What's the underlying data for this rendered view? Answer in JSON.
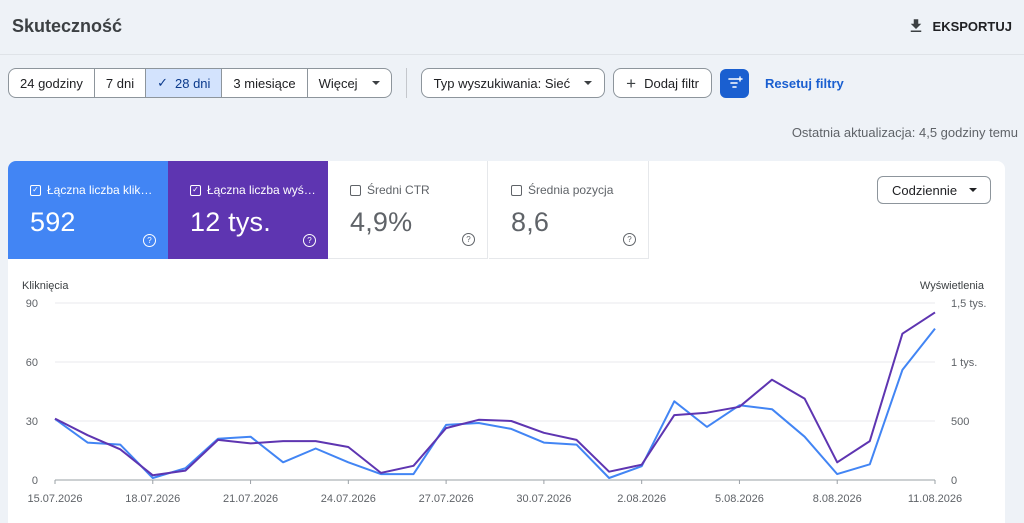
{
  "header": {
    "title": "Skuteczność",
    "export_label": "EKSPORTUJ"
  },
  "toolbar": {
    "ranges": [
      "24 godziny",
      "7 dni",
      "28 dni",
      "3 miesiące",
      "Więcej"
    ],
    "selected_range": "28 dni",
    "search_type_label": "Typ wyszukiwania: Sieć",
    "add_filter_label": "Dodaj filtr",
    "reset_label": "Resetuj filtry"
  },
  "last_update": "Ostatnia aktualizacja: 4,5 godziny temu",
  "metrics": [
    {
      "label": "Łączna liczba klik…",
      "value": "592",
      "checked": true,
      "color": "#4285f4"
    },
    {
      "label": "Łączna liczba wyś…",
      "value": "12 tys.",
      "checked": true,
      "color": "#5e35b1"
    },
    {
      "label": "Średni CTR",
      "value": "4,9%",
      "checked": false
    },
    {
      "label": "Średnia pozycja",
      "value": "8,6",
      "checked": false
    }
  ],
  "granularity": "Codziennie",
  "icons": {
    "export": "download-icon",
    "filter": "filter-list-icon",
    "help": "help-circle-icon"
  },
  "chart_data": {
    "type": "line",
    "x": [
      "15.07.2026",
      "16.07.2026",
      "17.07.2026",
      "18.07.2026",
      "19.07.2026",
      "20.07.2026",
      "21.07.2026",
      "22.07.2026",
      "23.07.2026",
      "24.07.2026",
      "25.07.2026",
      "26.07.2026",
      "27.07.2026",
      "28.07.2026",
      "29.07.2026",
      "30.07.2026",
      "31.07.2026",
      "01.08.2026",
      "02.08.2026",
      "03.08.2026",
      "04.08.2026",
      "05.08.2026",
      "06.08.2026",
      "07.08.2026",
      "08.08.2026",
      "09.08.2026",
      "10.08.2026",
      "11.08.2026"
    ],
    "x_tick_labels": [
      "15.07.2026",
      "18.07.2026",
      "21.07.2026",
      "24.07.2026",
      "27.07.2026",
      "30.07.2026",
      "2.08.2026",
      "5.08.2026",
      "8.08.2026",
      "11.08.2026"
    ],
    "y_left": {
      "label": "Kliknięcia",
      "ticks": [
        "0",
        "30",
        "60",
        "90"
      ],
      "lim": [
        0,
        90
      ]
    },
    "y_right": {
      "label": "Wyświetlenia",
      "ticks": [
        "0",
        "500",
        "1 tys.",
        "1,5 tys."
      ],
      "lim": [
        0,
        1500
      ]
    },
    "series": [
      {
        "name": "Kliknięcia",
        "axis": "left",
        "color": "#4285f4",
        "values": [
          31,
          19,
          18,
          1,
          6,
          21,
          22,
          9,
          16,
          9,
          3,
          3,
          28,
          29,
          26,
          19,
          18,
          1,
          7,
          40,
          27,
          38,
          36,
          22,
          3,
          8,
          56,
          77
        ]
      },
      {
        "name": "Wyświetlenia",
        "axis": "right",
        "color": "#5e35b1",
        "values": [
          520,
          380,
          260,
          40,
          80,
          340,
          310,
          330,
          330,
          280,
          60,
          120,
          440,
          510,
          500,
          400,
          340,
          70,
          130,
          550,
          570,
          620,
          850,
          690,
          150,
          330,
          1240,
          1420
        ]
      }
    ],
    "grid": true
  }
}
